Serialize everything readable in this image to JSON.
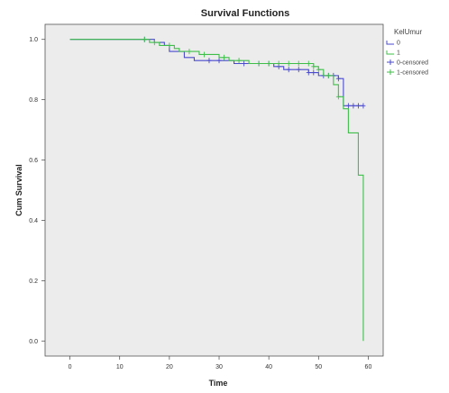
{
  "chart_data": {
    "type": "line",
    "subtype": "kaplan-meier",
    "title": "Survival Functions",
    "xlabel": "Time",
    "ylabel": "Cum Survival",
    "xlim": [
      -5,
      63
    ],
    "ylim": [
      -0.05,
      1.05
    ],
    "xticks": [
      0,
      10,
      20,
      30,
      40,
      50,
      60
    ],
    "yticks": [
      0.0,
      0.2,
      0.4,
      0.6,
      0.8,
      1.0
    ],
    "ytick_labels": [
      "0.0",
      "0.2",
      "0.4",
      "0.6",
      "0.8",
      "1.0"
    ],
    "grid": false,
    "plot_background": "#ececec",
    "legend": {
      "title": "KelUmur",
      "placement": "right",
      "entries": [
        {
          "label": "0",
          "kind": "line",
          "color": "#4a4acd"
        },
        {
          "label": "1",
          "kind": "line",
          "color": "#3fbf4a"
        },
        {
          "label": "0-censored",
          "kind": "censor",
          "color": "#4a4acd"
        },
        {
          "label": "1-censored",
          "kind": "censor",
          "color": "#3fbf4a"
        }
      ]
    },
    "series": [
      {
        "name": "0",
        "color": "#4a4acd",
        "steps": [
          [
            0,
            1.0
          ],
          [
            17,
            0.99
          ],
          [
            19,
            0.98
          ],
          [
            20,
            0.96
          ],
          [
            23,
            0.94
          ],
          [
            25,
            0.93
          ],
          [
            33,
            0.92
          ],
          [
            41,
            0.91
          ],
          [
            43,
            0.9
          ],
          [
            48,
            0.89
          ],
          [
            50,
            0.88
          ],
          [
            54,
            0.87
          ],
          [
            55,
            0.78
          ],
          [
            59,
            0.78
          ]
        ],
        "censored_x": [
          15,
          28,
          30,
          35,
          38,
          40,
          42,
          44,
          46,
          48,
          49,
          51,
          52,
          53,
          54,
          56,
          57,
          58,
          59
        ]
      },
      {
        "name": "1",
        "color": "#3fbf4a",
        "steps": [
          [
            0,
            1.0
          ],
          [
            16,
            0.99
          ],
          [
            18,
            0.98
          ],
          [
            21,
            0.97
          ],
          [
            22,
            0.96
          ],
          [
            26,
            0.95
          ],
          [
            30,
            0.94
          ],
          [
            32,
            0.93
          ],
          [
            36,
            0.92
          ],
          [
            49,
            0.91
          ],
          [
            50,
            0.9
          ],
          [
            51,
            0.88
          ],
          [
            53,
            0.85
          ],
          [
            54,
            0.81
          ],
          [
            55,
            0.77
          ],
          [
            56,
            0.69
          ],
          [
            58,
            0.55
          ],
          [
            59,
            0.0
          ]
        ],
        "censored_x": [
          15,
          17,
          20,
          24,
          27,
          31,
          34,
          38,
          40,
          42,
          44,
          46,
          48,
          49,
          50,
          52,
          54
        ]
      }
    ]
  }
}
